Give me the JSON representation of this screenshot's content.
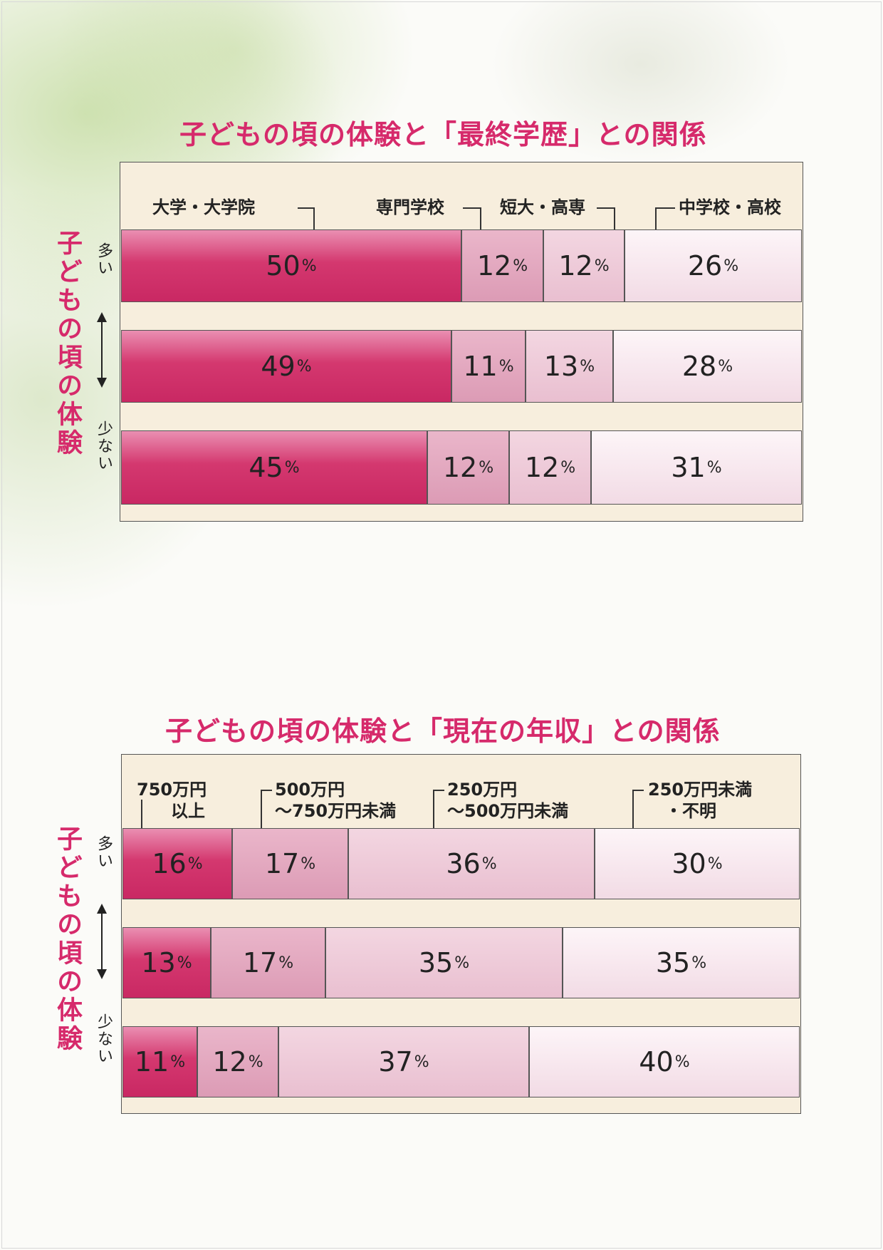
{
  "chart_data": [
    {
      "type": "bar",
      "stacked": "percent",
      "orientation": "horizontal",
      "title": "子どもの頃の体験と「最終学歴」との関係",
      "y_axis_label": "子どもの頃の体験",
      "y_axis_top": "多い",
      "y_axis_bottom": "少ない",
      "series": [
        {
          "name": "大学・大学院",
          "values": [
            50,
            49,
            45
          ]
        },
        {
          "name": "専門学校",
          "values": [
            12,
            11,
            12
          ]
        },
        {
          "name": "短大・高専",
          "values": [
            12,
            13,
            12
          ]
        },
        {
          "name": "中学校・高校",
          "values": [
            26,
            28,
            31
          ]
        }
      ],
      "labels": [
        [
          "50",
          "12",
          "12",
          "26"
        ],
        [
          "49",
          "11",
          "13",
          "28"
        ],
        [
          "45",
          "12",
          "12",
          "31"
        ]
      ],
      "pct_sign": "%",
      "colors": [
        "#d4386f",
        "#e2a2bb",
        "#ecc6d5",
        "#f7e6ec"
      ]
    },
    {
      "type": "bar",
      "stacked": "percent",
      "orientation": "horizontal",
      "title": "子どもの頃の体験と「現在の年収」との関係",
      "y_axis_label": "子どもの頃の体験",
      "y_axis_top": "多い",
      "y_axis_bottom": "少ない",
      "series": [
        {
          "name": "750万円\n　　以上",
          "values": [
            16,
            13,
            11
          ]
        },
        {
          "name": "500万円\n～750万円未満",
          "values": [
            17,
            17,
            12
          ]
        },
        {
          "name": "250万円\n～500万円未満",
          "values": [
            36,
            35,
            37
          ]
        },
        {
          "name": "250万円未満\n　・不明",
          "values": [
            30,
            35,
            40
          ]
        }
      ],
      "labels": [
        [
          "16",
          "17",
          "36",
          "30"
        ],
        [
          "13",
          "17",
          "35",
          "35"
        ],
        [
          "11",
          "12",
          "37",
          "40"
        ]
      ],
      "pct_sign": "%",
      "colors": [
        "#d4386f",
        "#e2a2bb",
        "#ecc6d5",
        "#f7e6ec"
      ]
    }
  ]
}
